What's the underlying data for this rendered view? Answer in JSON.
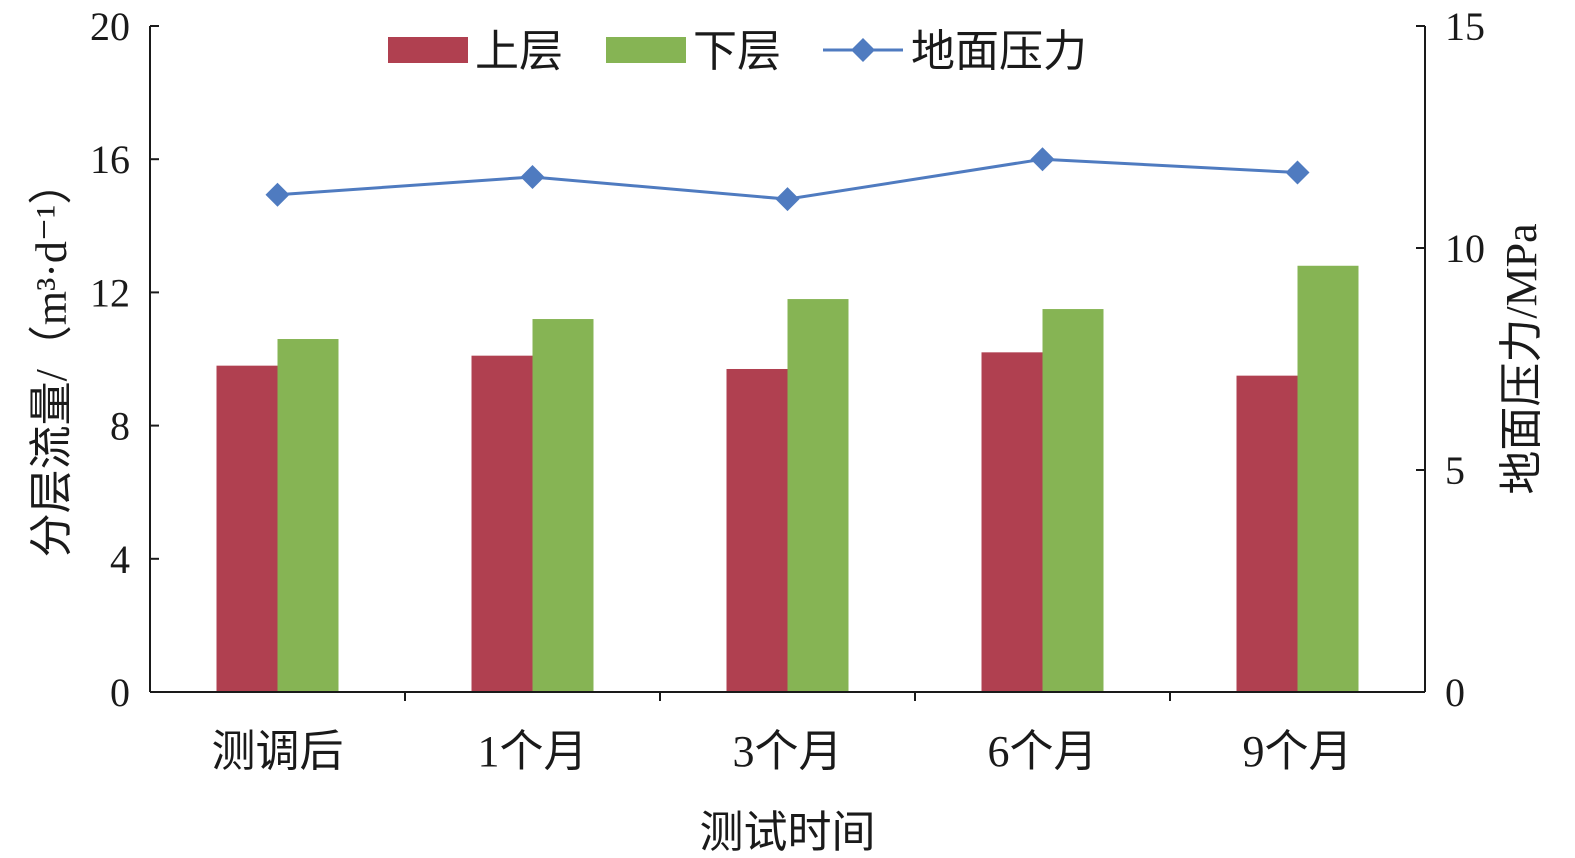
{
  "chart_data": {
    "type": "bar+line",
    "categories": [
      "测调后",
      "1个月",
      "3个月",
      "6个月",
      "9个月"
    ],
    "series": [
      {
        "name": "上层",
        "type": "bar",
        "axis": "left",
        "color": "#B04050",
        "values": [
          9.8,
          10.1,
          9.7,
          10.2,
          9.5
        ]
      },
      {
        "name": "下层",
        "type": "bar",
        "axis": "left",
        "color": "#86B454",
        "values": [
          10.6,
          11.2,
          11.8,
          11.5,
          12.8
        ]
      },
      {
        "name": "地面压力",
        "type": "line",
        "axis": "right",
        "marker": "diamond",
        "color": "#4F7BC0",
        "values": [
          11.2,
          11.6,
          11.1,
          12.0,
          11.7
        ]
      }
    ],
    "xlabel": "测试时间",
    "ylabel": "分层流量/（m³·d⁻¹）",
    "ylabel_right": "地面压力/MPa",
    "ylim": [
      0,
      20
    ],
    "ylim_right": [
      0,
      15
    ],
    "yticks": [
      0,
      4,
      8,
      12,
      16,
      20
    ],
    "yticks_right": [
      0,
      5,
      10,
      15
    ],
    "grid": false,
    "legend_position": "top-center"
  }
}
